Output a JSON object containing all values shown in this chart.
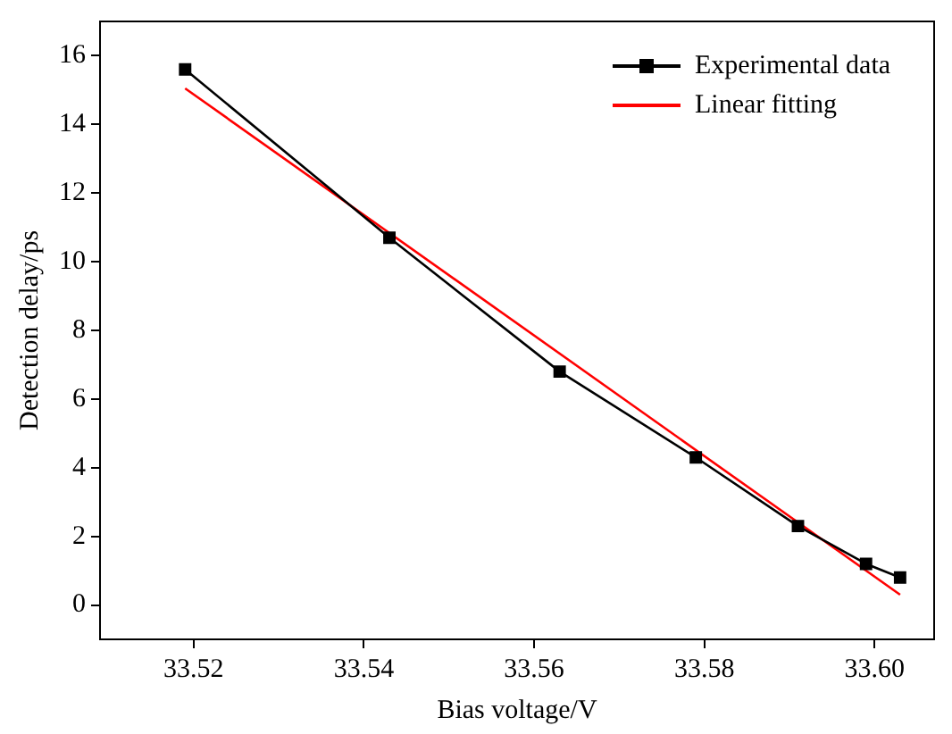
{
  "chart_data": {
    "type": "line",
    "xlabel": "Bias voltage/V",
    "ylabel": "Detection delay/ps",
    "xlim": [
      33.509,
      33.607
    ],
    "xticks": [
      {
        "value": 33.52,
        "label": "33.52"
      },
      {
        "value": 33.54,
        "label": "33.54"
      },
      {
        "value": 33.56,
        "label": "33.56"
      },
      {
        "value": 33.58,
        "label": "33.58"
      },
      {
        "value": 33.6,
        "label": "33.60"
      }
    ],
    "ylim": [
      -1,
      17
    ],
    "yticks": [
      0,
      2,
      4,
      6,
      8,
      10,
      12,
      14,
      16
    ],
    "grid": false,
    "legend": "top right",
    "series": [
      {
        "name": "Experimental data",
        "color": "#000000",
        "marker": "square",
        "x": [
          33.519,
          33.543,
          33.563,
          33.579,
          33.591,
          33.599,
          33.603
        ],
        "values": [
          15.6,
          10.7,
          6.8,
          4.3,
          2.3,
          1.2,
          0.8
        ]
      },
      {
        "name": "Linear fitting",
        "color": "#ff0000",
        "marker": "none",
        "x": [
          33.519,
          33.603
        ],
        "values": [
          15.05,
          0.3
        ]
      }
    ]
  }
}
